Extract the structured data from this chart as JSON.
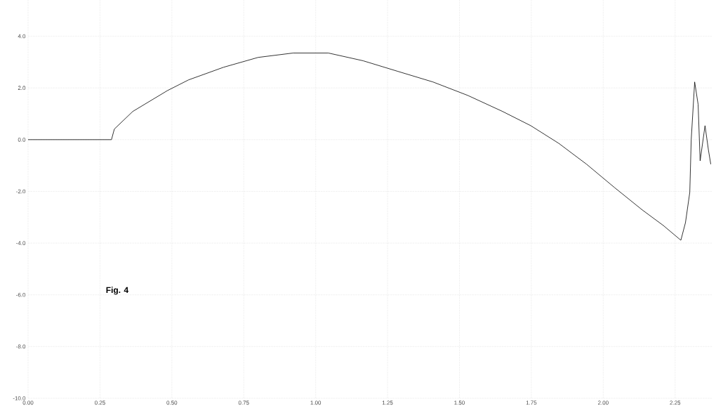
{
  "chart_data": {
    "type": "line",
    "annotations": [
      "Fig. 4"
    ],
    "x": [
      0,
      0.29,
      0.3,
      0.364,
      0.485,
      0.558,
      0.68,
      0.8,
      0.922,
      1.044,
      1.165,
      1.286,
      1.408,
      1.529,
      1.65,
      1.748,
      1.845,
      1.942,
      2.039,
      2.136,
      2.209,
      2.27,
      2.286,
      2.301,
      2.306,
      2.318,
      2.33,
      2.337,
      2.354,
      2.366,
      2.374
    ],
    "series": [
      {
        "color": "#000000",
        "values": [
          0,
          0,
          0.41,
          1.09,
          1.9,
          2.31,
          2.8,
          3.18,
          3.35,
          3.35,
          3.05,
          2.64,
          2.23,
          1.71,
          1.09,
          0.54,
          -0.14,
          -0.95,
          -1.85,
          -2.72,
          -3.32,
          -3.89,
          -3.21,
          -2.04,
          0,
          2.23,
          1.36,
          -0.82,
          0.54,
          -0.41,
          -0.95
        ]
      }
    ],
    "xlim": [
      0,
      2.38
    ],
    "ylim": [
      -10,
      5.4
    ],
    "xticks": [
      {
        "value": 0,
        "label": "0.00"
      },
      {
        "value": 0.25,
        "label": "0.25"
      },
      {
        "value": 0.5,
        "label": "0.50"
      },
      {
        "value": 0.75,
        "label": "0.75"
      },
      {
        "value": 1,
        "label": "1.00"
      },
      {
        "value": 1.25,
        "label": "1.25"
      },
      {
        "value": 1.5,
        "label": "1.50"
      },
      {
        "value": 1.75,
        "label": "1.75"
      },
      {
        "value": 2,
        "label": "2.00"
      },
      {
        "value": 2.25,
        "label": "2.25"
      }
    ],
    "yticks": [
      {
        "value": 4,
        "label": "4.0"
      },
      {
        "value": 2,
        "label": "2.0"
      },
      {
        "value": 0,
        "label": "0.0"
      },
      {
        "value": -2,
        "label": "-2.0"
      },
      {
        "value": -4,
        "label": "-4.0"
      },
      {
        "value": -6,
        "label": "-6.0"
      },
      {
        "value": -8,
        "label": "-8.0"
      },
      {
        "value": -10,
        "label": "-10.0"
      }
    ],
    "grid": true,
    "marker": "none",
    "line_style": "solid"
  }
}
